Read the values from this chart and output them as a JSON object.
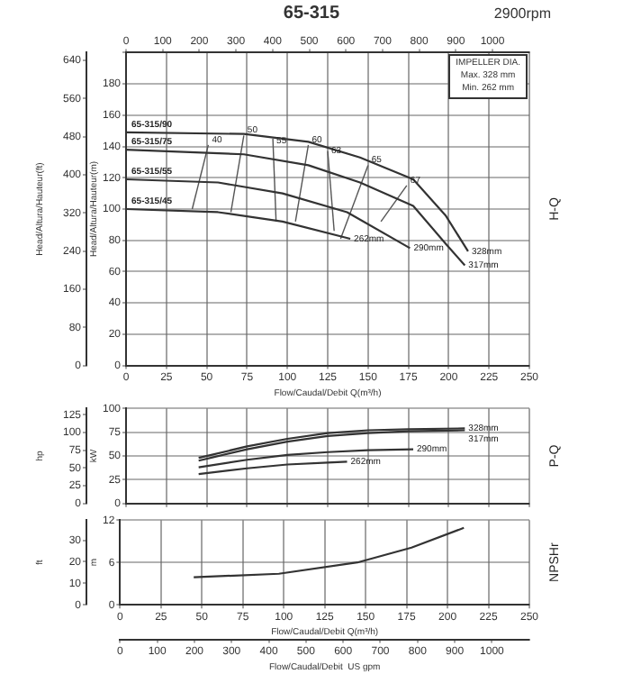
{
  "chart_data": [
    {
      "type": "line",
      "title": "65-315",
      "subtitle": "2900rpm",
      "xlabel": "Flow/Caudal/Debit Q(m³/h)",
      "ylabel": "Head/Altura/Hauteur(m)",
      "y2label": "Head/Altura/Hauteur(ft)",
      "xlim": [
        0,
        250
      ],
      "xticks": [
        0,
        25,
        50,
        75,
        100,
        125,
        150,
        175,
        200,
        225,
        250
      ],
      "x2lim": [
        0,
        1100.75
      ],
      "x2ticks": [
        0,
        100,
        200,
        300,
        400,
        500,
        600,
        700,
        800,
        900,
        1000
      ],
      "ylim": [
        0,
        200
      ],
      "yticks": [
        0,
        20,
        40,
        60,
        80,
        100,
        120,
        140,
        160,
        180,
        {
          "value": 200,
          "label": null
        }
      ],
      "y2lim": [
        0,
        656.2
      ],
      "y2ticks": [
        0,
        80,
        160,
        240,
        320,
        400,
        480,
        560,
        640
      ],
      "grid": true,
      "legend": false,
      "line_style": "solid",
      "marker": "none",
      "series": [
        {
          "name": "328mm",
          "color": "#333333",
          "x": [
            0,
            73,
            113,
            145,
            178,
            198,
            212
          ],
          "values": [
            149,
            148,
            143,
            133,
            119,
            96,
            73
          ]
        },
        {
          "name": "317mm",
          "color": "#333333",
          "x": [
            0,
            73,
            113,
            145,
            178,
            198,
            210
          ],
          "values": [
            138,
            135,
            128,
            117,
            102,
            78,
            64
          ]
        },
        {
          "name": "290mm",
          "color": "#333333",
          "x": [
            0,
            57,
            97,
            137,
            176
          ],
          "values": [
            119,
            117,
            110,
            98,
            75
          ]
        },
        {
          "name": "262mm",
          "color": "#333333",
          "x": [
            0,
            57,
            97,
            139
          ],
          "values": [
            100,
            98,
            92,
            81
          ]
        },
        {
          "name": "40",
          "color": "#555555",
          "x": [
            41,
            51
          ],
          "values": [
            100,
            141
          ]
        },
        {
          "name": "50",
          "color": "#555555",
          "x": [
            65,
            73
          ],
          "values": [
            98,
            147
          ]
        },
        {
          "name": "55",
          "color": "#555555",
          "x": [
            93,
            91
          ],
          "values": [
            92,
            145
          ]
        },
        {
          "name": "60",
          "color": "#555555",
          "x": [
            105,
            113
          ],
          "values": [
            92,
            141
          ]
        },
        {
          "name": "63",
          "color": "#555555",
          "x": [
            129,
            125
          ],
          "values": [
            86,
            137
          ]
        },
        {
          "name": "65",
          "color": "#555555",
          "x": [
            133,
            150
          ],
          "values": [
            81,
            128
          ]
        },
        {
          "name": "67",
          "color": "#555555",
          "x": [
            158,
            174
          ],
          "values": [
            92,
            115
          ]
        }
      ],
      "annotations": [
        "H-Q",
        "IMPELLER DIA.",
        "Max.  328  mm",
        "Min.  262  mm",
        {
          "text": "65-315/90",
          "y": 150
        },
        {
          "text": "65-315/75",
          "y": 139
        },
        {
          "text": "65-315/55",
          "y": 120
        },
        {
          "text": "65-315/45",
          "y": 101
        }
      ]
    },
    {
      "type": "line",
      "ylabel": "kW",
      "y2label": "hp",
      "tick_labels": "y",
      "xlim": [
        0,
        250
      ],
      "xticks": [
        0,
        25,
        50,
        75,
        100,
        125,
        150,
        175,
        200,
        225,
        250
      ],
      "ylim": [
        0,
        100
      ],
      "yticks": [
        0,
        25,
        50,
        75,
        100
      ],
      "y2lim": [
        0,
        134.1
      ],
      "y2ticks": [
        0,
        25,
        50,
        75,
        100,
        125
      ],
      "grid": true,
      "legend": false,
      "line_style": "solid",
      "marker": "none",
      "series": [
        {
          "name": "328mm",
          "color": "#333333",
          "x": [
            45,
            75,
            100,
            125,
            150,
            175,
            210
          ],
          "values": [
            48,
            60,
            68,
            74,
            77,
            78,
            79
          ]
        },
        {
          "name": "317mm",
          "color": "#333333",
          "x": [
            45,
            75,
            100,
            125,
            150,
            175,
            210
          ],
          "values": [
            45,
            57,
            65,
            71,
            74,
            76,
            77
          ]
        },
        {
          "name": "290mm",
          "color": "#333333",
          "x": [
            45,
            75,
            100,
            125,
            150,
            178
          ],
          "values": [
            38,
            46,
            51,
            54,
            56,
            57
          ]
        },
        {
          "name": "262mm",
          "color": "#333333",
          "x": [
            45,
            75,
            100,
            125,
            137
          ],
          "values": [
            31,
            37,
            41,
            43,
            44
          ]
        }
      ],
      "annotations": [
        "P-Q"
      ]
    },
    {
      "type": "line",
      "xlabel": "Flow/Caudal/Debit Q(m³/h)",
      "ylabel": "m",
      "y2label": "ft",
      "x2label": "Flow/Caudal/Debit  US gpm",
      "xlim": [
        0,
        250
      ],
      "xticks": [
        0,
        25,
        50,
        75,
        100,
        125,
        150,
        175,
        200,
        225,
        250
      ],
      "x2lim": [
        0,
        1100.75
      ],
      "x2ticks": [
        0,
        100,
        200,
        300,
        400,
        500,
        600,
        700,
        800,
        900,
        1000
      ],
      "ylim": [
        0,
        12
      ],
      "yticks": [
        0,
        6,
        12
      ],
      "y2lim": [
        0,
        39.4
      ],
      "y2ticks": [
        0,
        10,
        20,
        30
      ],
      "grid": true,
      "legend": false,
      "line_style": "solid",
      "marker": "none",
      "series": [
        {
          "color": "#333333",
          "x": [
            45,
            97,
            145,
            178,
            210
          ],
          "values": [
            3.9,
            4.4,
            6.0,
            8.1,
            10.9
          ]
        }
      ],
      "annotations": [
        "NPSHr"
      ]
    }
  ]
}
